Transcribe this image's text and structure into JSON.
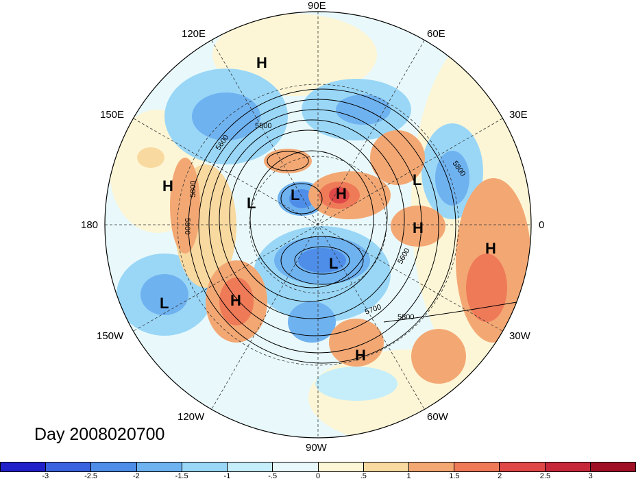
{
  "map": {
    "title": "Day 2008020700",
    "longitude_labels": {
      "top": "90E",
      "upper_left": "120E",
      "upper_right": "60E",
      "left_upper": "150E",
      "right_upper": "30E",
      "left": "180",
      "right": "0",
      "left_lower": "150W",
      "right_lower": "30W",
      "lower_left": "120W",
      "lower_right": "60W",
      "bottom": "90W"
    },
    "pressure_centers": [
      {
        "type": "H",
        "lon_lat_hint": "East Siberia"
      },
      {
        "type": "H",
        "lon_lat_hint": "Kamchatka/Bering"
      },
      {
        "type": "L",
        "lon_lat_hint": "Arctic East Siberia"
      },
      {
        "type": "L",
        "lon_lat_hint": "Arctic"
      },
      {
        "type": "H",
        "lon_lat_hint": "Barents"
      },
      {
        "type": "L",
        "lon_lat_hint": "Central Asia"
      },
      {
        "type": "H",
        "lon_lat_hint": "Europe"
      },
      {
        "type": "H",
        "lon_lat_hint": "North Africa"
      },
      {
        "type": "L",
        "lon_lat_hint": "Canada"
      },
      {
        "type": "L",
        "lon_lat_hint": "Central Pacific"
      },
      {
        "type": "H",
        "lon_lat_hint": "NE Pacific"
      },
      {
        "type": "H",
        "lon_lat_hint": "Western Atlantic"
      }
    ],
    "contour_labels": [
      "5500",
      "5600",
      "5800",
      "5800",
      "5800",
      "5800",
      "5600",
      "5700",
      "5800"
    ]
  },
  "colorbar": {
    "ticks": [
      "-3",
      "-2.5",
      "-2",
      "-1.5",
      "-1",
      "-.5",
      "0",
      ".5",
      "1",
      "1.5",
      "2",
      "2.5",
      "3"
    ],
    "colors": [
      "#2121c9",
      "#3a63e0",
      "#4e8ee8",
      "#6fb2f0",
      "#9ad7f7",
      "#c5eefa",
      "#e9f9fb",
      "#fdf6d6",
      "#f8d9a0",
      "#f3a874",
      "#ef7a58",
      "#e04848",
      "#c6283a",
      "#a01025"
    ]
  }
}
